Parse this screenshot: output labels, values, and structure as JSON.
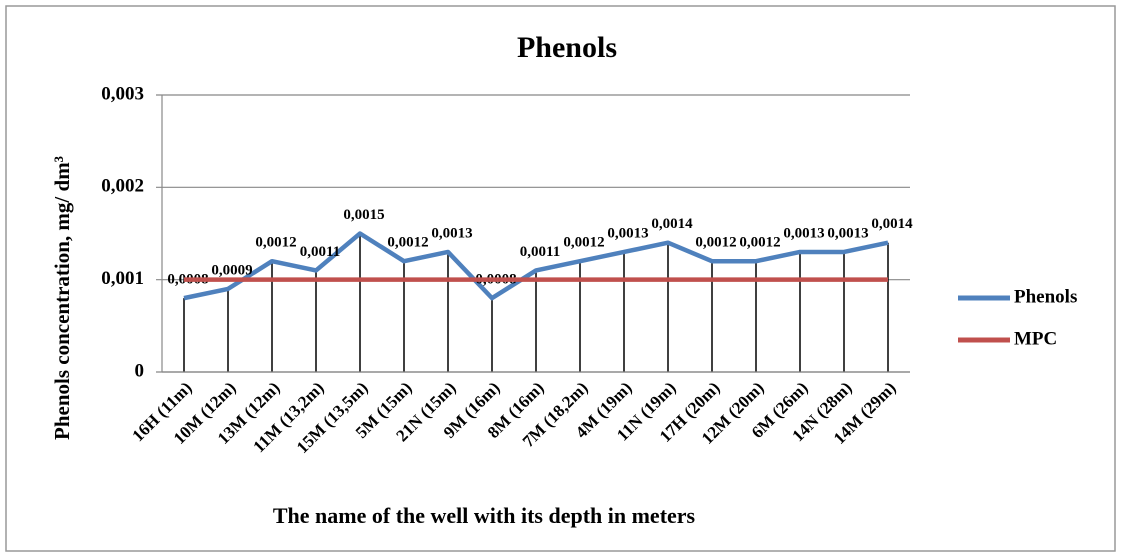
{
  "chart_data": {
    "type": "line",
    "title": "Phenols",
    "y_label": "Phenols concentration, mg/ dm³",
    "x_label": "The name of the well with its depth in meters",
    "categories": [
      "16H (11m)",
      "10M (12m)",
      "13M (12m)",
      "11M (13,2m)",
      "15M (13,5m)",
      "5M (15m)",
      "21N (15m)",
      "9M (16m)",
      "8M (16m)",
      "7M (18,2m)",
      "4M (19m)",
      "11N (19m)",
      "17H (20m)",
      "12M (20m)",
      "6M (26m)",
      "14N (28m)",
      "14M (29m)"
    ],
    "series": [
      {
        "name": "Phenols",
        "color": "#4f81bd",
        "values": [
          0.0008,
          0.0009,
          0.0012,
          0.0011,
          0.0015,
          0.0012,
          0.0013,
          0.0008,
          0.0011,
          0.0012,
          0.0013,
          0.0014,
          0.0012,
          0.0012,
          0.0013,
          0.0013,
          0.0014
        ],
        "value_labels": [
          "0,0008",
          "0,0009",
          "0,0012",
          "0,0011",
          "0,0015",
          "0,0012",
          "0,0013",
          "0,0008",
          "0,0011",
          "0,0012",
          "0,0013",
          "0,0014",
          "0,0012",
          "0,0012",
          "0,0013",
          "0,0013",
          "0,0014"
        ]
      },
      {
        "name": "MPC",
        "color": "#c0504d",
        "values": [
          0.001,
          0.001,
          0.001,
          0.001,
          0.001,
          0.001,
          0.001,
          0.001,
          0.001,
          0.001,
          0.001,
          0.001,
          0.001,
          0.001,
          0.001,
          0.001,
          0.001
        ]
      }
    ],
    "ylim": [
      0,
      0.003
    ],
    "yticks": [
      0,
      {
        "value": 0.001,
        "label": "0,001"
      },
      {
        "value": 0.002,
        "label": "0,002"
      },
      {
        "value": 0.003,
        "label": "0,003"
      }
    ],
    "grid": true,
    "drop_lines": true,
    "legend": "right"
  }
}
